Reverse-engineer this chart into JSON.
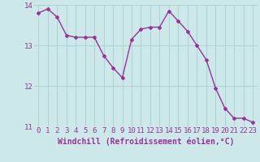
{
  "x": [
    0,
    1,
    2,
    3,
    4,
    5,
    6,
    7,
    8,
    9,
    10,
    11,
    12,
    13,
    14,
    15,
    16,
    17,
    18,
    19,
    20,
    21,
    22,
    23
  ],
  "y": [
    13.8,
    13.9,
    13.7,
    13.25,
    13.2,
    13.2,
    13.2,
    12.75,
    12.45,
    12.2,
    13.15,
    13.4,
    13.45,
    13.45,
    13.85,
    13.6,
    13.35,
    13.0,
    12.65,
    11.95,
    11.45,
    11.2,
    11.2,
    11.1
  ],
  "line_color": "#993399",
  "marker": "D",
  "marker_size": 2.0,
  "bg_color": "#cce8e8",
  "grid_color": "#aad4d4",
  "xlabel": "Windchill (Refroidissement éolien,°C)",
  "xlabel_color": "#993399",
  "tick_color": "#993399",
  "ylim": [
    11.0,
    14.0
  ],
  "xlim": [
    -0.5,
    23.5
  ],
  "yticks": [
    11,
    12,
    13,
    14
  ],
  "xticks": [
    0,
    1,
    2,
    3,
    4,
    5,
    6,
    7,
    8,
    9,
    10,
    11,
    12,
    13,
    14,
    15,
    16,
    17,
    18,
    19,
    20,
    21,
    22,
    23
  ],
  "tick_fontsize": 6.5,
  "xlabel_fontsize": 7,
  "line_width": 1.0
}
